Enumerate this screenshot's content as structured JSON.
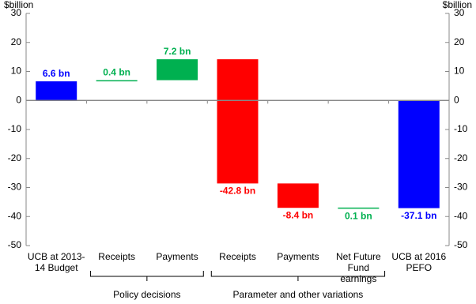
{
  "chart_data": {
    "type": "waterfall",
    "y_axis_label": "$billion",
    "y2_axis_label": "$billion",
    "categories": [
      "UCB at 2013-14 Budget",
      "Receipts",
      "Payments",
      "Receipts",
      "Payments",
      "Net Future Fund earnings",
      "UCB at 2016 PEFO"
    ],
    "values": [
      6.6,
      0.4,
      7.2,
      -42.8,
      -8.4,
      0.1,
      -37.1
    ],
    "value_labels": [
      "6.6 bn",
      "0.4 bn",
      "7.2 bn",
      "-42.8 bn",
      "-8.4 bn",
      "0.1 bn",
      "-37.1 bn"
    ],
    "bar_kinds": [
      "total",
      "delta",
      "delta",
      "delta",
      "delta",
      "delta",
      "total"
    ],
    "colors": [
      "#0000ff",
      "#00b050",
      "#00b050",
      "#ff0000",
      "#ff0000",
      "#00b050",
      "#0000ff"
    ],
    "groups": [
      "Policy decisions",
      "Parameter and other variations"
    ],
    "ylim": [
      -50,
      30
    ],
    "yticks": [
      -50,
      -40,
      -30,
      -20,
      -10,
      0,
      10,
      20,
      30
    ],
    "y2lim": [
      -50,
      30
    ],
    "y2ticks": [
      -50,
      -40,
      -30,
      -20,
      -10,
      0,
      10,
      20,
      30
    ]
  }
}
